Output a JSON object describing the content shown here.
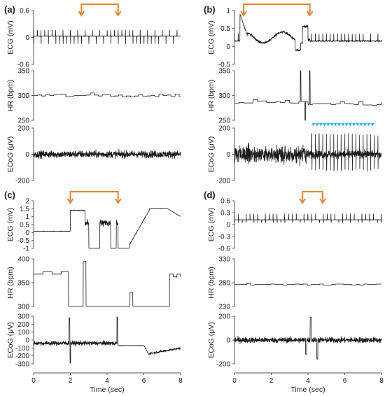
{
  "colors": {
    "bracket": "#f0822c",
    "triangles": "#35b6e8",
    "signal": "#1a1a1a",
    "axis": "#555555"
  },
  "chart_data": [
    {
      "type": "line",
      "panel_label": "(a)",
      "xlabel": "",
      "xlim": [
        0,
        8
      ],
      "xticks": [],
      "event_bracket": [
        2.6,
        4.6
      ],
      "triangle_markers": [],
      "subplots": [
        {
          "key": "ecg",
          "ylabel": "ECG (mV)",
          "ylim": [
            -0.6,
            0.6
          ],
          "ytick_labels": [
            "0.6",
            "0",
            "-0.6"
          ],
          "ytick_values": [
            0.6,
            0,
            -0.6
          ],
          "signal": "ecg_spikes",
          "baseline": 0.03,
          "spike_up": 0.16,
          "spike_down": -0.14,
          "beat_interval": 0.2
        },
        {
          "key": "hr",
          "ylabel": "HR (bpm)",
          "ylim": [
            250,
            350
          ],
          "ytick_labels": [
            "350",
            "300",
            "250"
          ],
          "ytick_values": [
            350,
            300,
            250
          ],
          "signal": "hr_step",
          "mean": 300,
          "jitter": 5
        },
        {
          "key": "ecog",
          "ylabel": "ECoG (μV)",
          "ylim": [
            -200,
            200
          ],
          "ytick_labels": [
            "200",
            "0",
            "-200"
          ],
          "ytick_values": [
            200,
            0,
            -200
          ],
          "signal": "ecog_noise",
          "amplitude": 45
        }
      ]
    },
    {
      "type": "line",
      "panel_label": "(b)",
      "xlabel": "",
      "xlim": [
        0,
        8
      ],
      "xticks": [],
      "event_bracket": [
        0.5,
        4.1
      ],
      "triangle_markers": [
        4.3,
        4.5,
        4.7,
        4.9,
        5.1,
        5.3,
        5.5,
        5.7,
        5.9,
        6.1,
        6.3,
        6.5,
        6.7,
        6.9,
        7.1,
        7.3,
        7.5
      ],
      "subplots": [
        {
          "key": "ecg",
          "ylabel": "ECG (mV)",
          "ylim": [
            -0.5,
            1.0
          ],
          "ytick_labels": [
            "1",
            "0.5",
            "0",
            "-0.5"
          ],
          "ytick_values": [
            1,
            0.5,
            0,
            -0.5
          ],
          "signal": "ecg_b"
        },
        {
          "key": "hr",
          "ylabel": "HR (bpm)",
          "ylim": [
            250,
            350
          ],
          "ytick_labels": [
            "350",
            "300",
            "250"
          ],
          "ytick_values": [
            350,
            300,
            250
          ],
          "signal": "hr_b"
        },
        {
          "key": "ecog",
          "ylabel": "ECoG (μV)",
          "ylim": [
            -200,
            200
          ],
          "ytick_labels": [
            "200",
            "0",
            "-200"
          ],
          "ytick_values": [
            200,
            0,
            -200
          ],
          "signal": "ecog_b"
        }
      ]
    },
    {
      "type": "line",
      "panel_label": "(c)",
      "xlabel": "Time (sec)",
      "xlim": [
        0,
        8
      ],
      "xticks": [
        "0",
        "2",
        "4",
        "6",
        "8"
      ],
      "event_bracket": [
        2.0,
        4.6
      ],
      "triangle_markers": [],
      "subplots": [
        {
          "key": "ecg",
          "ylabel": "ECG (mV)",
          "ylim": [
            -1,
            2
          ],
          "ytick_labels": [
            "2",
            "1.5",
            "1",
            "0.5",
            "0",
            "-0.5",
            "-1"
          ],
          "ytick_values": [
            2,
            1.5,
            1,
            0.5,
            0,
            -0.5,
            -1
          ],
          "signal": "ecg_c"
        },
        {
          "key": "hr",
          "ylabel": "HR (bpm)",
          "ylim": [
            300,
            400
          ],
          "ytick_labels": [
            "400",
            "350",
            "300"
          ],
          "ytick_values": [
            400,
            350,
            300
          ],
          "signal": "hr_c"
        },
        {
          "key": "ecog",
          "ylabel": "ECoG (μV)",
          "ylim": [
            -300,
            300
          ],
          "ytick_labels": [
            "300",
            "200",
            "100",
            "0",
            "-100",
            "-200",
            "-300"
          ],
          "ytick_values": [
            300,
            200,
            100,
            0,
            -100,
            -200,
            -300
          ],
          "signal": "ecog_c"
        }
      ]
    },
    {
      "type": "line",
      "panel_label": "(d)",
      "xlabel": "Time (sec)",
      "xlim": [
        0,
        8
      ],
      "xticks": [
        "0",
        "2",
        "4",
        "6",
        "8"
      ],
      "event_bracket": [
        3.7,
        4.8
      ],
      "triangle_markers": [],
      "subplots": [
        {
          "key": "ecg",
          "ylabel": "ECG (mV)",
          "ylim": [
            -0.6,
            0.6
          ],
          "ytick_labels": [
            "0.6",
            "0.3",
            "0",
            "-0.3",
            "-0.6"
          ],
          "ytick_values": [
            0.6,
            0.3,
            0,
            -0.3,
            -0.6
          ],
          "signal": "ecg_spikes",
          "baseline": 0.12,
          "spike_up": 0.27,
          "spike_down": 0.05,
          "beat_interval": 0.21
        },
        {
          "key": "hr",
          "ylabel": "HR (bpm)",
          "ylim": [
            230,
            330
          ],
          "ytick_labels": [
            "330",
            "280",
            "230"
          ],
          "ytick_values": [
            330,
            280,
            230
          ],
          "signal": "hr_step",
          "mean": 276,
          "jitter": 2
        },
        {
          "key": "ecog",
          "ylabel": "ECoG (μV)",
          "ylim": [
            -200,
            200
          ],
          "ytick_labels": [
            "200",
            "0",
            "-200"
          ],
          "ytick_values": [
            200,
            0,
            -200
          ],
          "signal": "ecog_d"
        }
      ]
    }
  ]
}
